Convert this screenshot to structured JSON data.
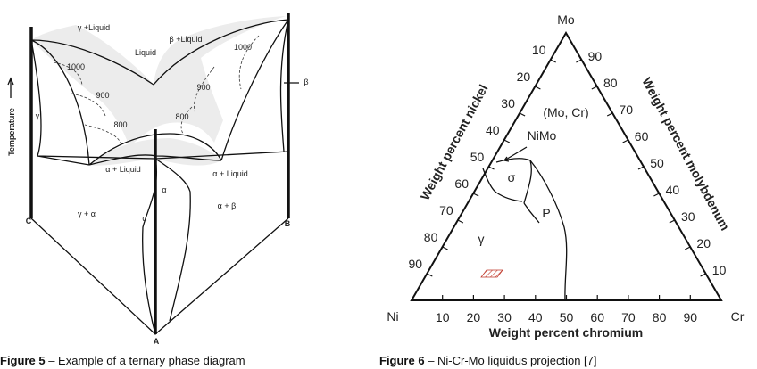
{
  "figure_5": {
    "labels": {
      "gamma_liquid": "γ +Liquid",
      "beta_liquid": "β +Liquid",
      "liquid": "Liquid",
      "iso_1000_left": "1000",
      "iso_1000_right": "1000",
      "iso_900_left": "900",
      "iso_900_right": "900",
      "iso_800_left": "800",
      "iso_800_right": "800",
      "gamma": "γ",
      "alpha_liquid_left": "α + Liquid",
      "alpha_liquid_right": "α + Liquid",
      "alpha_upper": "α",
      "gamma_alpha": "γ + α",
      "alpha_lower": "α",
      "alpha_beta": "α + β",
      "beta": "β",
      "corner_c": "C",
      "corner_b": "B",
      "corner_a": "A",
      "temperature": "Temperature"
    },
    "caption": {
      "label": "Figure 5",
      "text": " – Example of a ternary phase diagram"
    }
  },
  "figure_6": {
    "corners": {
      "top": "Mo",
      "left": "Ni",
      "right": "Cr"
    },
    "axis_titles": {
      "left": "Weight percent nickel",
      "right": "Weight percent molybdenum",
      "bottom": "Weight percent chromium"
    },
    "bottom_ticks": [
      10,
      20,
      30,
      40,
      50,
      60,
      70,
      80,
      90
    ],
    "left_ticks": [
      10,
      20,
      30,
      40,
      50,
      60,
      70,
      80,
      90
    ],
    "right_ticks": [
      10,
      20,
      30,
      40,
      50,
      60,
      70,
      80,
      90
    ],
    "regions": {
      "mo_cr": "(Mo, Cr)",
      "nimo": "NiMo",
      "sigma": "σ",
      "p": "P",
      "gamma": "γ"
    },
    "caption": {
      "label": "Figure 6",
      "text": " – Ni-Cr-Mo liquidus projection [7]"
    }
  }
}
